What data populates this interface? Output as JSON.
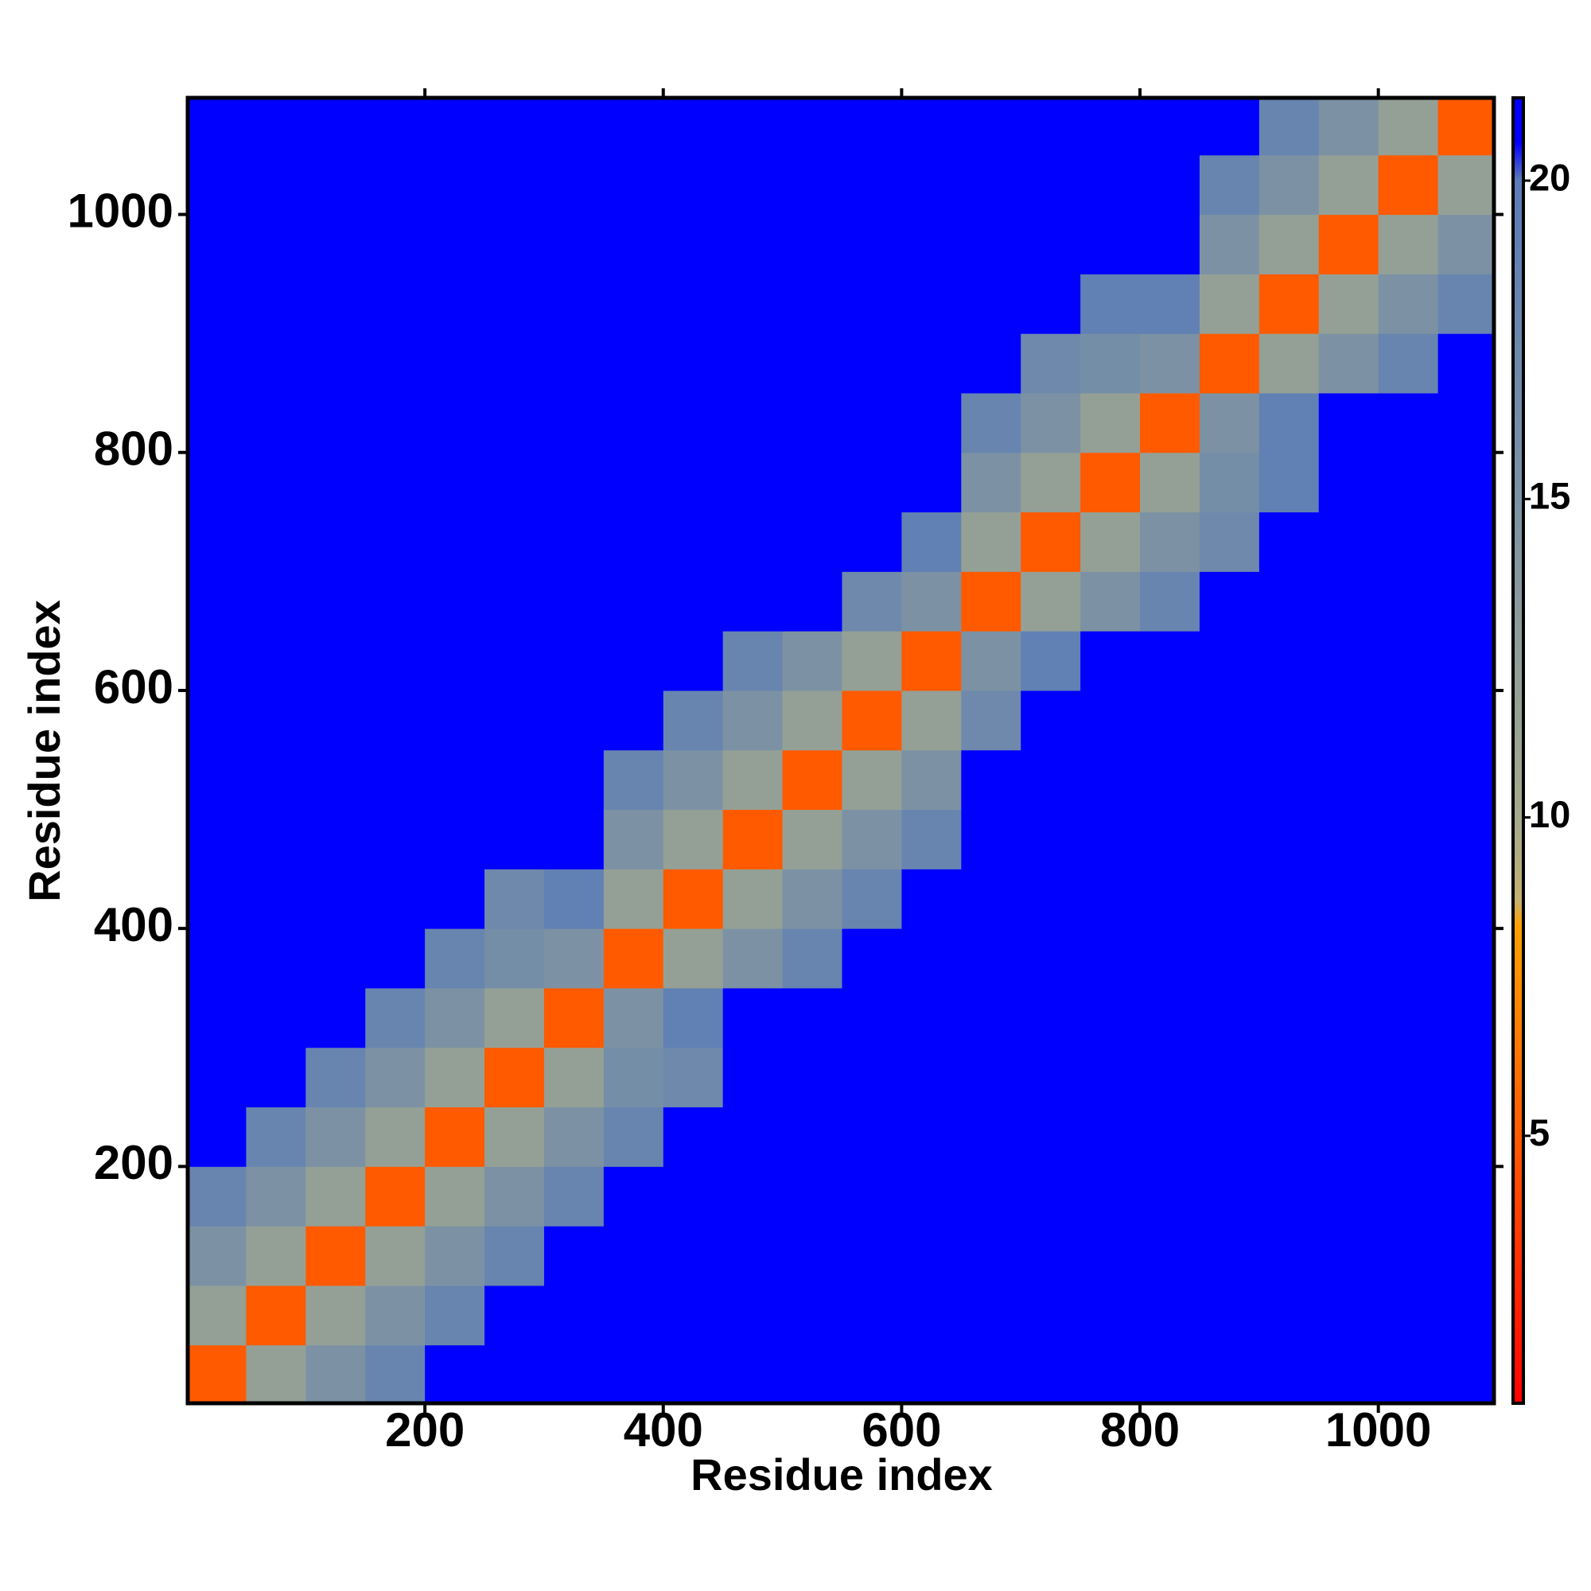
{
  "chart_data": {
    "type": "heatmap",
    "x_label": "Residue index",
    "y_label": "Residue index",
    "bins": [
      0,
      50,
      100,
      150,
      200,
      250,
      300,
      350,
      400,
      450,
      500,
      550,
      600,
      650,
      700,
      750,
      800,
      850,
      900,
      950,
      1000,
      1050,
      1100
    ],
    "z": [
      [
        5,
        12,
        15,
        18,
        21,
        21,
        21,
        21,
        21,
        21,
        21,
        21,
        21,
        21,
        21,
        21,
        21,
        21,
        21,
        21,
        21,
        21
      ],
      [
        12,
        5,
        12,
        15,
        18,
        21,
        21,
        21,
        21,
        21,
        21,
        21,
        21,
        21,
        21,
        21,
        21,
        21,
        21,
        21,
        21,
        21
      ],
      [
        15,
        12,
        5,
        12,
        15,
        18,
        21,
        21,
        21,
        21,
        21,
        21,
        21,
        21,
        21,
        21,
        21,
        21,
        21,
        21,
        21,
        21
      ],
      [
        18,
        15,
        12,
        5,
        12,
        15,
        18,
        21,
        21,
        21,
        21,
        21,
        21,
        21,
        21,
        21,
        21,
        21,
        21,
        21,
        21,
        21
      ],
      [
        21,
        18,
        15,
        12,
        5,
        12,
        15,
        18,
        21,
        21,
        21,
        21,
        21,
        21,
        21,
        21,
        21,
        21,
        21,
        21,
        21,
        21
      ],
      [
        21,
        21,
        18,
        15,
        12,
        5,
        12,
        16,
        17,
        21,
        21,
        21,
        21,
        21,
        21,
        21,
        21,
        21,
        21,
        21,
        21,
        21
      ],
      [
        21,
        21,
        21,
        18,
        15,
        12,
        5,
        15,
        19,
        21,
        21,
        21,
        21,
        21,
        21,
        21,
        21,
        21,
        21,
        21,
        21,
        21
      ],
      [
        21,
        21,
        21,
        21,
        18,
        16,
        15,
        5,
        12,
        15,
        18,
        21,
        21,
        21,
        21,
        21,
        21,
        21,
        21,
        21,
        21,
        21
      ],
      [
        21,
        21,
        21,
        21,
        21,
        17,
        19,
        12,
        5,
        12,
        15,
        18,
        21,
        21,
        21,
        21,
        21,
        21,
        21,
        21,
        21,
        21
      ],
      [
        21,
        21,
        21,
        21,
        21,
        21,
        21,
        15,
        12,
        5,
        12,
        15,
        18,
        21,
        21,
        21,
        21,
        21,
        21,
        21,
        21,
        21
      ],
      [
        21,
        21,
        21,
        21,
        21,
        21,
        21,
        18,
        15,
        12,
        5,
        12,
        15,
        21,
        21,
        21,
        21,
        21,
        21,
        21,
        21,
        21
      ],
      [
        21,
        21,
        21,
        21,
        21,
        21,
        21,
        21,
        18,
        15,
        12,
        5,
        12,
        17,
        21,
        21,
        21,
        21,
        21,
        21,
        21,
        21
      ],
      [
        21,
        21,
        21,
        21,
        21,
        21,
        21,
        21,
        21,
        18,
        15,
        12,
        5,
        15,
        19,
        21,
        21,
        21,
        21,
        21,
        21,
        21
      ],
      [
        21,
        21,
        21,
        21,
        21,
        21,
        21,
        21,
        21,
        21,
        21,
        17,
        15,
        5,
        12,
        15,
        18,
        21,
        21,
        21,
        21,
        21
      ],
      [
        21,
        21,
        21,
        21,
        21,
        21,
        21,
        21,
        21,
        21,
        21,
        21,
        19,
        12,
        5,
        12,
        15,
        17,
        21,
        21,
        21,
        21
      ],
      [
        21,
        21,
        21,
        21,
        21,
        21,
        21,
        21,
        21,
        21,
        21,
        21,
        21,
        15,
        12,
        5,
        12,
        16,
        19,
        21,
        21,
        21
      ],
      [
        21,
        21,
        21,
        21,
        21,
        21,
        21,
        21,
        21,
        21,
        21,
        21,
        21,
        18,
        15,
        12,
        5,
        15,
        19,
        21,
        21,
        21
      ],
      [
        21,
        21,
        21,
        21,
        21,
        21,
        21,
        21,
        21,
        21,
        21,
        21,
        21,
        21,
        17,
        16,
        15,
        5,
        12,
        15,
        18,
        21
      ],
      [
        21,
        21,
        21,
        21,
        21,
        21,
        21,
        21,
        21,
        21,
        21,
        21,
        21,
        21,
        21,
        19,
        19,
        12,
        5,
        12,
        15,
        18
      ],
      [
        21,
        21,
        21,
        21,
        21,
        21,
        21,
        21,
        21,
        21,
        21,
        21,
        21,
        21,
        21,
        21,
        21,
        15,
        12,
        5,
        12,
        15
      ],
      [
        21,
        21,
        21,
        21,
        21,
        21,
        21,
        21,
        21,
        21,
        21,
        21,
        21,
        21,
        21,
        21,
        21,
        18,
        15,
        12,
        5,
        12
      ],
      [
        21,
        21,
        21,
        21,
        21,
        21,
        21,
        21,
        21,
        21,
        21,
        21,
        21,
        21,
        21,
        21,
        21,
        21,
        18,
        15,
        12,
        5
      ]
    ],
    "xlim": [
      1,
      1097
    ],
    "ylim": [
      1,
      1098
    ],
    "xticks": [
      200,
      400,
      600,
      800,
      1000
    ],
    "yticks": [
      200,
      400,
      600,
      800,
      1000
    ],
    "clim": [
      0.8,
      21.3
    ],
    "cticks": [
      5,
      10,
      15,
      20
    ],
    "colorscale": [
      [
        0.8,
        "#ff0000"
      ],
      [
        5,
        "#ff5a00"
      ],
      [
        8.3,
        "#ffa000"
      ],
      [
        8.7,
        "#c4b070"
      ],
      [
        10,
        "#a4aa8c"
      ],
      [
        15,
        "#7c92a4"
      ],
      [
        20,
        "#5a7cb8"
      ],
      [
        20.6,
        "#0000ff"
      ],
      [
        21.3,
        "#0000ff"
      ]
    ]
  }
}
